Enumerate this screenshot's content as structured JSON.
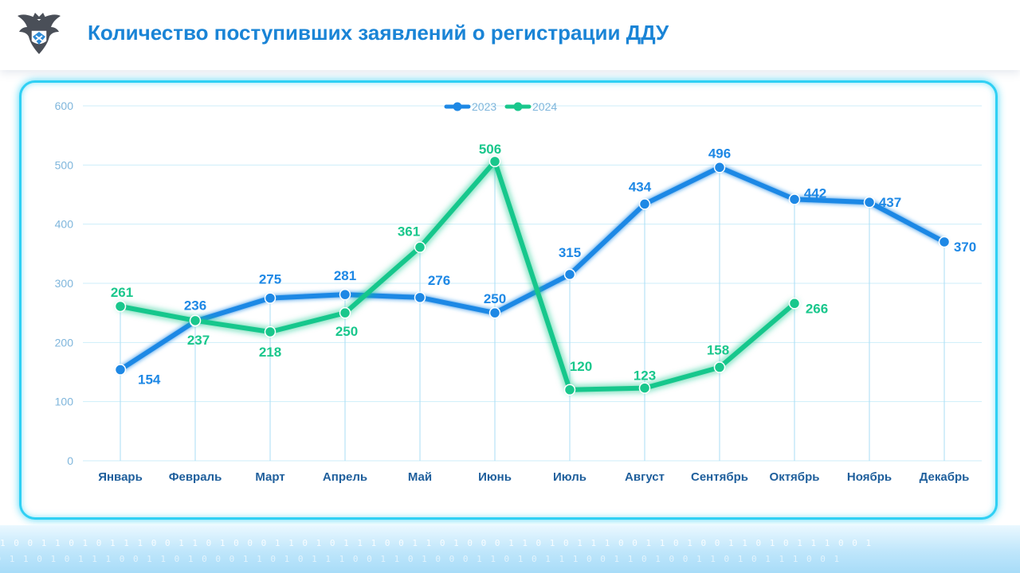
{
  "header": {
    "title": "Количество поступивших заявлений о регистрации ДДУ",
    "logo_icon": "double-headed-eagle-emblem-icon"
  },
  "footer": {
    "pattern_text": "1 0 0 1 1 0 1 0 1 1 1 0 0 1 1 0 1 0 0 0 1 1 0 1 0 1 1 1 0 0 1 1 0 1 0 0 0 1 1 0 1 0 1 1 1 0 0 1 1 0 1 0 0 1 1 0 1 0 1 1 1 0 0 1"
  },
  "colors": {
    "series_2023": "#1e88e5",
    "series_2024": "#19c78c",
    "title": "#1a84d6",
    "frame": "#2fd0f4",
    "grid": "#cdeefa"
  },
  "chart_data": {
    "type": "line",
    "categories": [
      "Январь",
      "Февраль",
      "Март",
      "Апрель",
      "Май",
      "Июнь",
      "Июль",
      "Август",
      "Сентябрь",
      "Октябрь",
      "Ноябрь",
      "Декабрь"
    ],
    "ylim": [
      0,
      600
    ],
    "yticks": [
      "0",
      "100",
      "200",
      "300",
      "400",
      "500",
      "600"
    ],
    "grid": true,
    "legend_position": "top",
    "series": [
      {
        "name": "2023",
        "values": [
          154,
          236,
          275,
          281,
          276,
          250,
          315,
          434,
          496,
          442,
          437,
          370
        ]
      },
      {
        "name": "2024",
        "values": [
          261,
          237,
          218,
          250,
          361,
          506,
          120,
          123,
          158,
          266,
          null,
          null
        ]
      }
    ]
  }
}
